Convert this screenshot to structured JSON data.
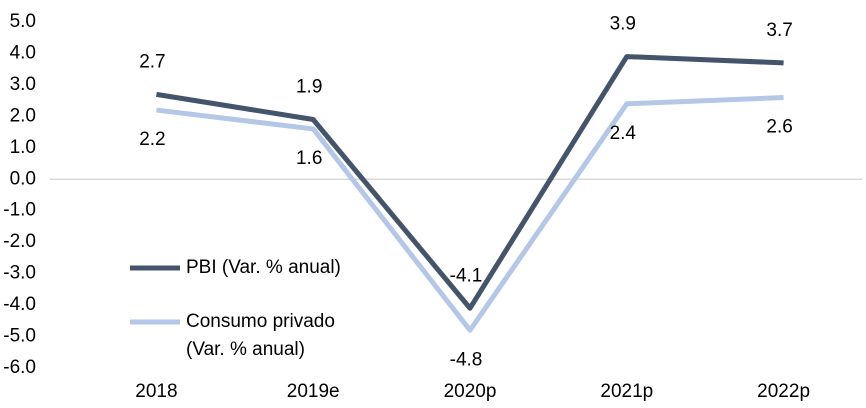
{
  "chart_data": {
    "type": "line",
    "categories": [
      "2018",
      "2019e",
      "2020p",
      "2021p",
      "2022p"
    ],
    "series": [
      {
        "name": "PBI (Var. % anual)",
        "color": "#44546a",
        "values": [
          2.7,
          1.9,
          -4.1,
          3.9,
          3.7
        ]
      },
      {
        "name": "Consumo privado (Var. % anual)",
        "color": "#b4c7e7",
        "values": [
          2.2,
          1.6,
          -4.8,
          2.4,
          2.6
        ]
      }
    ],
    "ylim": [
      -6,
      5
    ],
    "yticks": [
      {
        "value": 5,
        "label": "5.0"
      },
      {
        "value": 4,
        "label": "4.0"
      },
      {
        "value": 3,
        "label": "3.0"
      },
      {
        "value": 2,
        "label": "2.0"
      },
      {
        "value": 1,
        "label": "1.0"
      },
      {
        "value": 0,
        "label": "0.0"
      },
      {
        "value": -1,
        "label": "-1.0"
      },
      {
        "value": -2,
        "label": "-2.0"
      },
      {
        "value": -3,
        "label": "-3.0"
      },
      {
        "value": -4,
        "label": "-4.0"
      },
      {
        "value": -5,
        "label": "-5.0"
      },
      {
        "value": -6,
        "label": "-6.0"
      }
    ],
    "legend": "lower left"
  }
}
